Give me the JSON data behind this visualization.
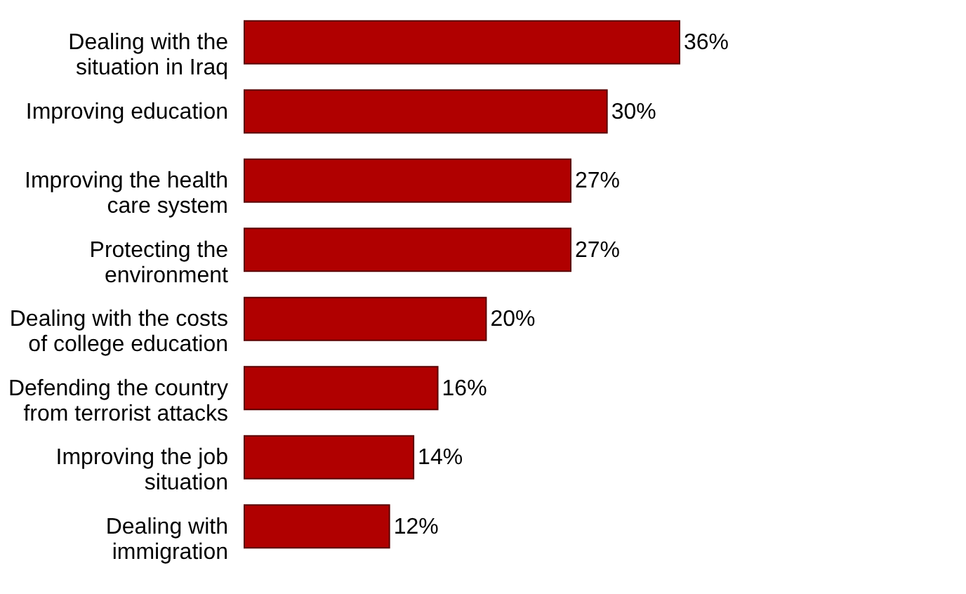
{
  "chart_data": {
    "type": "bar",
    "orientation": "horizontal",
    "categories": [
      "Dealing with the situation in Iraq",
      "Improving education",
      "Improving the health care system",
      "Protecting the environment",
      "Dealing with the costs of college education",
      "Defending the country from terrorist attacks",
      "Improving the job situation",
      "Dealing with immigration"
    ],
    "values": [
      36,
      30,
      27,
      27,
      20,
      16,
      14,
      12
    ],
    "value_labels": [
      "36%",
      "30%",
      "27%",
      "27%",
      "20%",
      "16%",
      "14%",
      "12%"
    ],
    "color": "#b00000"
  }
}
